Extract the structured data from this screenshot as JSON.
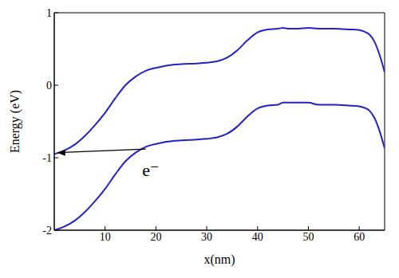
{
  "chart_data": {
    "type": "line",
    "x_label": "x(nm)",
    "y_label": "Energy (eV)",
    "x": [
      0,
      2,
      4,
      6,
      8,
      10,
      12,
      14,
      16,
      18,
      20,
      22,
      25,
      28,
      30,
      32,
      34,
      36,
      38,
      40,
      42,
      44,
      45,
      46,
      48,
      50,
      52,
      55,
      58,
      60,
      61,
      62,
      63,
      64,
      65
    ],
    "series": [
      {
        "color": "#2222c8",
        "values": [
          -0.95,
          -0.9,
          -0.82,
          -0.7,
          -0.55,
          -0.38,
          -0.18,
          0.0,
          0.12,
          0.2,
          0.24,
          0.27,
          0.29,
          0.3,
          0.31,
          0.33,
          0.38,
          0.48,
          0.62,
          0.73,
          0.77,
          0.78,
          0.79,
          0.78,
          0.78,
          0.79,
          0.78,
          0.78,
          0.77,
          0.76,
          0.74,
          0.7,
          0.6,
          0.42,
          0.18
        ]
      },
      {
        "color": "#2222c8",
        "values": [
          -2.0,
          -1.95,
          -1.87,
          -1.75,
          -1.6,
          -1.43,
          -1.23,
          -1.05,
          -0.93,
          -0.85,
          -0.81,
          -0.78,
          -0.76,
          -0.75,
          -0.74,
          -0.72,
          -0.67,
          -0.57,
          -0.43,
          -0.32,
          -0.28,
          -0.27,
          -0.24,
          -0.24,
          -0.24,
          -0.24,
          -0.27,
          -0.27,
          -0.28,
          -0.29,
          -0.31,
          -0.35,
          -0.45,
          -0.63,
          -0.87
        ]
      }
    ],
    "xlim": [
      0,
      65
    ],
    "ylim": [
      -2,
      1
    ],
    "xticks": [
      10,
      20,
      30,
      40,
      50,
      60
    ],
    "yticks": [
      -2,
      -1,
      0,
      1
    ],
    "annotations": [
      {
        "text": "e⁻",
        "x": 19,
        "y": -1.2,
        "arrow_from": [
          18,
          -0.88
        ],
        "arrow_to": [
          0.6,
          -0.93
        ]
      }
    ]
  }
}
